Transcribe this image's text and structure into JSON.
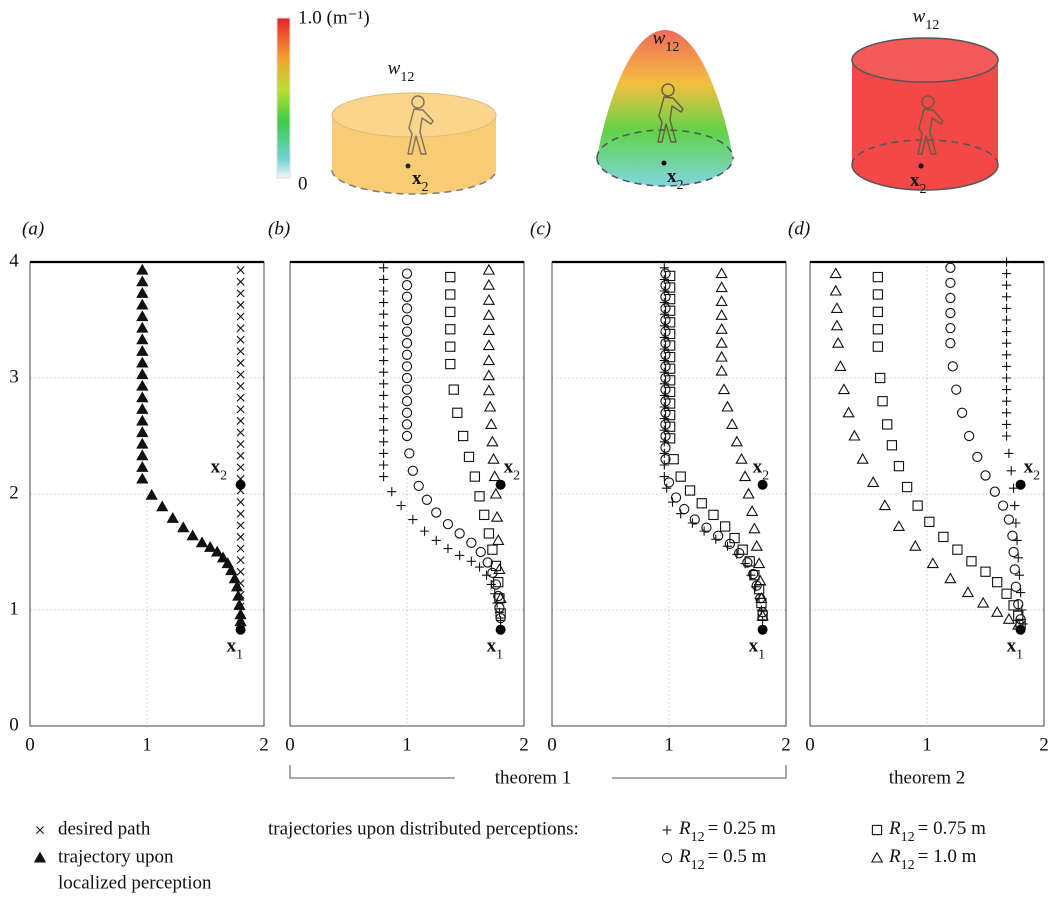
{
  "chart_data": [
    {
      "type": "scatter",
      "title": "(a)",
      "xlim": [
        0,
        2
      ],
      "ylim": [
        0,
        4
      ],
      "xticks": [
        0,
        1,
        2
      ],
      "yticks": [
        0,
        1,
        2,
        3,
        4
      ],
      "grid": true,
      "ytick_labels": true,
      "series": [
        {
          "marker": "cross",
          "x": [
            1.8,
            1.8,
            1.8,
            1.8,
            1.8,
            1.8,
            1.8,
            1.8,
            1.8,
            1.8,
            1.8,
            1.8,
            1.8,
            1.8,
            1.8,
            1.8,
            1.8,
            1.8,
            1.8,
            1.8,
            1.8,
            1.8,
            1.8,
            1.8,
            1.8,
            1.8,
            1.8,
            1.8,
            1.8,
            1.8,
            1.8
          ],
          "y": [
            0.93,
            1.03,
            1.13,
            1.23,
            1.33,
            1.43,
            1.53,
            1.63,
            1.73,
            1.83,
            1.93,
            2.03,
            2.13,
            2.23,
            2.33,
            2.43,
            2.53,
            2.63,
            2.73,
            2.83,
            2.93,
            3.03,
            3.13,
            3.23,
            3.33,
            3.43,
            3.53,
            3.63,
            3.73,
            3.83,
            3.93
          ]
        },
        {
          "marker": "triangle-filled",
          "x": [
            0.96,
            0.96,
            0.96,
            0.96,
            0.96,
            0.96,
            0.96,
            0.96,
            0.96,
            0.96,
            0.96,
            0.96,
            0.96,
            0.96,
            0.96,
            0.96,
            0.96,
            0.96,
            0.96,
            1.04,
            1.13,
            1.22,
            1.31,
            1.39,
            1.47,
            1.54,
            1.6,
            1.65,
            1.69,
            1.72,
            1.75,
            1.77,
            1.78,
            1.79,
            1.8,
            1.8
          ],
          "y": [
            3.93,
            3.83,
            3.73,
            3.63,
            3.53,
            3.43,
            3.33,
            3.23,
            3.13,
            3.03,
            2.93,
            2.83,
            2.73,
            2.63,
            2.53,
            2.43,
            2.33,
            2.23,
            2.13,
            1.99,
            1.89,
            1.79,
            1.71,
            1.64,
            1.58,
            1.54,
            1.5,
            1.45,
            1.4,
            1.34,
            1.27,
            1.2,
            1.12,
            1.04,
            0.96,
            0.9
          ]
        }
      ],
      "points": [
        {
          "label": {
            "text": "x",
            "sub": "1"
          },
          "x": 1.8,
          "y": 0.83
        },
        {
          "label": {
            "text": "x",
            "sub": "2"
          },
          "x": 1.8,
          "y": 2.08
        }
      ]
    },
    {
      "type": "scatter",
      "title": "(b)",
      "xlim": [
        0,
        2
      ],
      "ylim": [
        0,
        4
      ],
      "xticks": [
        0,
        1,
        2
      ],
      "yticks": [
        0,
        1,
        2,
        3,
        4
      ],
      "grid": true,
      "ytick_labels": false,
      "series": [
        {
          "marker": "plus",
          "x": [
            0.8,
            0.8,
            0.8,
            0.8,
            0.8,
            0.8,
            0.8,
            0.8,
            0.8,
            0.8,
            0.8,
            0.8,
            0.8,
            0.8,
            0.8,
            0.8,
            0.8,
            0.8,
            0.8,
            0.87,
            0.95,
            1.05,
            1.15,
            1.25,
            1.35,
            1.45,
            1.55,
            1.62,
            1.68,
            1.72,
            1.75,
            1.77,
            1.79,
            1.8
          ],
          "y": [
            3.95,
            3.85,
            3.75,
            3.65,
            3.55,
            3.45,
            3.35,
            3.25,
            3.15,
            3.05,
            2.95,
            2.85,
            2.75,
            2.65,
            2.55,
            2.45,
            2.35,
            2.25,
            2.15,
            2.02,
            1.9,
            1.78,
            1.68,
            1.6,
            1.53,
            1.47,
            1.42,
            1.37,
            1.3,
            1.22,
            1.14,
            1.06,
            0.98,
            0.91
          ]
        },
        {
          "marker": "circle",
          "x": [
            1.0,
            1.0,
            1.0,
            1.0,
            1.0,
            1.0,
            1.0,
            1.0,
            1.0,
            1.0,
            1.0,
            1.0,
            1.0,
            1.0,
            1.0,
            1.02,
            1.05,
            1.1,
            1.17,
            1.25,
            1.35,
            1.45,
            1.55,
            1.63,
            1.69,
            1.73,
            1.76,
            1.78,
            1.79,
            1.8
          ],
          "y": [
            3.9,
            3.8,
            3.7,
            3.6,
            3.5,
            3.4,
            3.3,
            3.2,
            3.1,
            3.0,
            2.9,
            2.8,
            2.7,
            2.6,
            2.5,
            2.35,
            2.2,
            2.07,
            1.95,
            1.84,
            1.74,
            1.66,
            1.58,
            1.5,
            1.41,
            1.32,
            1.22,
            1.12,
            1.02,
            0.93
          ]
        },
        {
          "marker": "square",
          "x": [
            1.37,
            1.37,
            1.37,
            1.37,
            1.37,
            1.37,
            1.4,
            1.43,
            1.48,
            1.53,
            1.58,
            1.62,
            1.66,
            1.7,
            1.73,
            1.76,
            1.78,
            1.79,
            1.8
          ],
          "y": [
            3.87,
            3.72,
            3.57,
            3.42,
            3.27,
            3.12,
            2.9,
            2.7,
            2.5,
            2.32,
            2.15,
            1.98,
            1.82,
            1.66,
            1.52,
            1.38,
            1.24,
            1.1,
            0.97
          ]
        },
        {
          "marker": "triangle",
          "x": [
            1.7,
            1.7,
            1.7,
            1.7,
            1.7,
            1.7,
            1.7,
            1.7,
            1.7,
            1.71,
            1.72,
            1.73,
            1.74,
            1.75,
            1.76,
            1.77,
            1.78,
            1.79,
            1.8
          ],
          "y": [
            3.93,
            3.8,
            3.67,
            3.54,
            3.41,
            3.28,
            3.15,
            3.02,
            2.89,
            2.75,
            2.6,
            2.45,
            2.3,
            2.15,
            2.0,
            1.8,
            1.6,
            1.35,
            1.1
          ]
        }
      ],
      "points": [
        {
          "label": {
            "text": "x",
            "sub": "1"
          },
          "x": 1.8,
          "y": 0.83
        },
        {
          "label": {
            "text": "x",
            "sub": "2"
          },
          "x": 1.8,
          "y": 2.08
        }
      ]
    },
    {
      "type": "scatter",
      "title": "(c)",
      "xlim": [
        0,
        2
      ],
      "ylim": [
        0,
        4
      ],
      "xticks": [
        0,
        1,
        2
      ],
      "yticks": [
        0,
        1,
        2,
        3,
        4
      ],
      "grid": true,
      "ytick_labels": false,
      "series": [
        {
          "marker": "plus",
          "x": [
            0.96,
            0.96,
            0.96,
            0.96,
            0.96,
            0.96,
            0.96,
            0.96,
            0.96,
            0.96,
            0.96,
            0.96,
            0.96,
            0.96,
            0.96,
            0.96,
            0.96,
            0.96,
            0.96,
            0.98,
            1.03,
            1.1,
            1.2,
            1.3,
            1.4,
            1.5,
            1.58,
            1.65,
            1.7,
            1.74,
            1.77,
            1.79,
            1.8
          ],
          "y": [
            3.95,
            3.85,
            3.75,
            3.65,
            3.55,
            3.45,
            3.35,
            3.25,
            3.15,
            3.05,
            2.95,
            2.85,
            2.75,
            2.65,
            2.55,
            2.45,
            2.35,
            2.25,
            2.15,
            2.05,
            1.93,
            1.83,
            1.75,
            1.68,
            1.61,
            1.55,
            1.48,
            1.4,
            1.3,
            1.2,
            1.1,
            1.0,
            0.91
          ]
        },
        {
          "marker": "circle",
          "x": [
            0.97,
            0.97,
            0.97,
            0.97,
            0.97,
            0.97,
            0.97,
            0.97,
            0.97,
            0.97,
            0.97,
            0.97,
            0.97,
            0.97,
            0.97,
            0.97,
            0.97,
            1.0,
            1.06,
            1.13,
            1.22,
            1.32,
            1.42,
            1.52,
            1.6,
            1.67,
            1.72,
            1.75,
            1.78,
            1.8
          ],
          "y": [
            3.9,
            3.8,
            3.7,
            3.6,
            3.5,
            3.4,
            3.3,
            3.2,
            3.1,
            3.0,
            2.9,
            2.8,
            2.7,
            2.6,
            2.5,
            2.4,
            2.3,
            2.1,
            1.97,
            1.87,
            1.78,
            1.71,
            1.64,
            1.57,
            1.49,
            1.41,
            1.31,
            1.21,
            1.1,
            0.98
          ]
        },
        {
          "marker": "square",
          "x": [
            1.01,
            1.01,
            1.01,
            1.01,
            1.01,
            1.01,
            1.01,
            1.01,
            1.01,
            1.01,
            1.01,
            1.01,
            1.01,
            1.01,
            1.01,
            1.04,
            1.1,
            1.18,
            1.28,
            1.38,
            1.48,
            1.56,
            1.63,
            1.69,
            1.73,
            1.77,
            1.79,
            1.8
          ],
          "y": [
            3.88,
            3.78,
            3.68,
            3.58,
            3.48,
            3.38,
            3.28,
            3.18,
            3.08,
            2.98,
            2.88,
            2.78,
            2.68,
            2.58,
            2.48,
            2.3,
            2.15,
            2.03,
            1.92,
            1.82,
            1.72,
            1.62,
            1.52,
            1.42,
            1.3,
            1.18,
            1.06,
            0.95
          ]
        },
        {
          "marker": "triangle",
          "x": [
            1.45,
            1.45,
            1.45,
            1.45,
            1.45,
            1.45,
            1.45,
            1.45,
            1.47,
            1.5,
            1.54,
            1.58,
            1.62,
            1.65,
            1.68,
            1.71,
            1.73,
            1.75,
            1.77,
            1.78,
            1.79,
            1.8
          ],
          "y": [
            3.9,
            3.78,
            3.66,
            3.54,
            3.42,
            3.3,
            3.18,
            3.06,
            2.9,
            2.75,
            2.6,
            2.45,
            2.3,
            2.15,
            2.0,
            1.85,
            1.7,
            1.55,
            1.4,
            1.25,
            1.1,
            0.95
          ]
        }
      ],
      "points": [
        {
          "label": {
            "text": "x",
            "sub": "1"
          },
          "x": 1.8,
          "y": 0.83
        },
        {
          "label": {
            "text": "x",
            "sub": "2"
          },
          "x": 1.8,
          "y": 2.08
        }
      ]
    },
    {
      "type": "scatter",
      "title": "(d)",
      "xlim": [
        0,
        2
      ],
      "ylim": [
        0,
        4
      ],
      "xticks": [
        0,
        1,
        2
      ],
      "yticks": [
        0,
        1,
        2,
        3,
        4
      ],
      "grid": true,
      "ytick_labels": false,
      "series": [
        {
          "marker": "plus",
          "x": [
            1.68,
            1.68,
            1.68,
            1.68,
            1.68,
            1.68,
            1.68,
            1.68,
            1.68,
            1.68,
            1.68,
            1.68,
            1.68,
            1.68,
            1.68,
            1.68,
            1.7,
            1.72,
            1.74,
            1.75,
            1.76,
            1.77,
            1.78,
            1.79,
            1.8,
            1.81,
            1.82
          ],
          "y": [
            4.0,
            3.9,
            3.8,
            3.7,
            3.6,
            3.5,
            3.4,
            3.3,
            3.2,
            3.1,
            3.0,
            2.9,
            2.8,
            2.7,
            2.6,
            2.5,
            2.35,
            2.2,
            2.05,
            1.9,
            1.75,
            1.6,
            1.45,
            1.3,
            1.15,
            1.0,
            0.88
          ]
        },
        {
          "marker": "circle",
          "x": [
            1.2,
            1.2,
            1.2,
            1.2,
            1.2,
            1.2,
            1.22,
            1.25,
            1.3,
            1.36,
            1.43,
            1.5,
            1.58,
            1.65,
            1.7,
            1.73,
            1.74,
            1.75,
            1.76,
            1.78,
            1.8
          ],
          "y": [
            3.95,
            3.82,
            3.69,
            3.56,
            3.43,
            3.3,
            3.1,
            2.9,
            2.7,
            2.5,
            2.32,
            2.16,
            2.02,
            1.9,
            1.78,
            1.64,
            1.5,
            1.35,
            1.2,
            1.05,
            0.92
          ]
        },
        {
          "marker": "square",
          "x": [
            0.58,
            0.58,
            0.58,
            0.58,
            0.58,
            0.6,
            0.62,
            0.66,
            0.7,
            0.76,
            0.83,
            0.92,
            1.02,
            1.14,
            1.26,
            1.38,
            1.5,
            1.6,
            1.68,
            1.74,
            1.78,
            1.8
          ],
          "y": [
            3.87,
            3.72,
            3.57,
            3.42,
            3.27,
            3.0,
            2.8,
            2.6,
            2.42,
            2.24,
            2.06,
            1.9,
            1.76,
            1.63,
            1.52,
            1.42,
            1.33,
            1.24,
            1.14,
            1.04,
            0.95,
            0.88
          ]
        },
        {
          "marker": "triangle",
          "x": [
            0.22,
            0.22,
            0.23,
            0.23,
            0.24,
            0.26,
            0.29,
            0.33,
            0.38,
            0.45,
            0.54,
            0.64,
            0.76,
            0.9,
            1.05,
            1.2,
            1.35,
            1.48,
            1.6,
            1.7,
            1.78
          ],
          "y": [
            3.9,
            3.75,
            3.6,
            3.45,
            3.3,
            3.1,
            2.9,
            2.7,
            2.5,
            2.3,
            2.1,
            1.9,
            1.72,
            1.55,
            1.4,
            1.27,
            1.15,
            1.06,
            0.98,
            0.92,
            0.87
          ]
        }
      ],
      "points": [
        {
          "label": {
            "text": "x",
            "sub": "1"
          },
          "x": 1.8,
          "y": 0.83
        },
        {
          "label": {
            "text": "x",
            "sub": "2"
          },
          "x": 1.8,
          "y": 2.08
        }
      ]
    }
  ],
  "illustration": {
    "colorbar": {
      "max_label": "1.0 (m⁻¹)",
      "min_label": "0"
    },
    "shapes": [
      {
        "weight": {
          "text": "w",
          "sub": "12"
        },
        "point": {
          "text": "x",
          "sub": "2"
        }
      },
      {
        "weight": {
          "text": "w",
          "sub": "12"
        },
        "point": {
          "text": "x",
          "sub": "2"
        }
      },
      {
        "weight": {
          "text": "w",
          "sub": "12"
        },
        "point": {
          "text": "x",
          "sub": "2"
        }
      }
    ]
  },
  "groups": {
    "theorem_1": "theorem 1",
    "theorem_2": "theorem 2"
  },
  "legend": {
    "items": [
      {
        "marker": "cross",
        "text": [
          "desired path"
        ]
      },
      {
        "marker": "triangle-filled",
        "text": [
          "trajectory upon",
          "localized perception"
        ]
      }
    ],
    "heading": "trajectories upon distributed perceptions:",
    "distributed": [
      {
        "marker": "plus",
        "symbol": "R",
        "sub": "12",
        "text": "= 0.25 m"
      },
      {
        "marker": "circle",
        "symbol": "R",
        "sub": "12",
        "text": "= 0.5 m"
      },
      {
        "marker": "square",
        "symbol": "R",
        "sub": "12",
        "text": "= 0.75 m"
      },
      {
        "marker": "triangle",
        "symbol": "R",
        "sub": "12",
        "text": "= 1.0 m"
      }
    ]
  }
}
